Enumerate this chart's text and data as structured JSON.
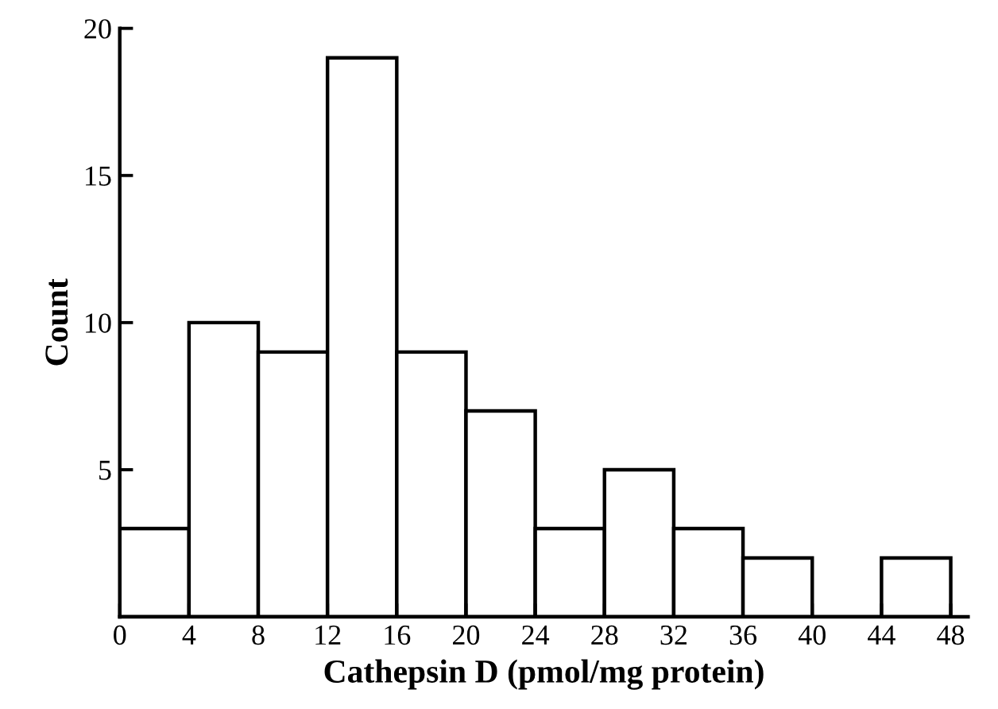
{
  "chart_data": {
    "type": "histogram",
    "xlabel": "Cathepsin D (pmol/mg protein)",
    "ylabel": "Count",
    "bins": [
      0,
      4,
      8,
      12,
      16,
      20,
      24,
      28,
      32,
      36,
      40,
      44,
      48
    ],
    "values": [
      3,
      10,
      9,
      19,
      9,
      7,
      3,
      5,
      3,
      2,
      0,
      2
    ],
    "color": "#ffffff",
    "xlim": [
      0,
      49
    ],
    "ylim": [
      0,
      20
    ],
    "xticks": [
      0,
      4,
      8,
      12,
      16,
      20,
      24,
      28,
      32,
      36,
      40,
      44,
      48
    ],
    "yticks": [
      5,
      10,
      15,
      20
    ],
    "grid": false
  }
}
